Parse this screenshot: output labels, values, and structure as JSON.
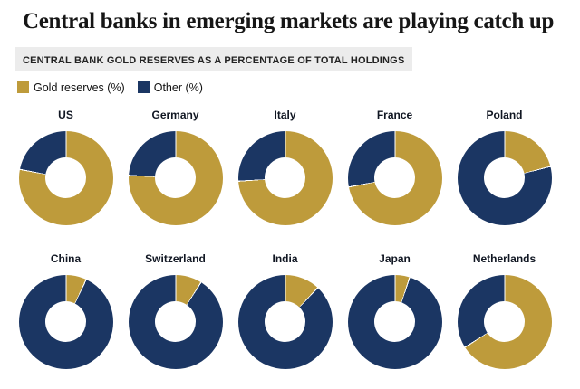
{
  "title": "Central banks in emerging markets are playing catch up",
  "subtitle": "CENTRAL BANK GOLD RESERVES AS A PERCENTAGE OF TOTAL HOLDINGS",
  "legend": {
    "gold_label": "Gold reserves (%)",
    "other_label": "Other (%)"
  },
  "colors": {
    "gold": "#BE9B3B",
    "navy": "#1B3663",
    "separator": "#FFFFFF"
  },
  "chart_data": {
    "type": "pie",
    "subtype": "donut-grid",
    "title": "Central bank gold reserves as a percentage of total holdings",
    "legend_entries": [
      "Gold reserves (%)",
      "Other (%)"
    ],
    "legend_position": "top-left",
    "columns": 5,
    "rows": 2,
    "series": [
      {
        "label": "US",
        "gold_pct": 78,
        "other_pct": 22
      },
      {
        "label": "Germany",
        "gold_pct": 76,
        "other_pct": 24
      },
      {
        "label": "Italy",
        "gold_pct": 74,
        "other_pct": 26
      },
      {
        "label": "France",
        "gold_pct": 72,
        "other_pct": 28
      },
      {
        "label": "Poland",
        "gold_pct": 21,
        "other_pct": 79
      },
      {
        "label": "China",
        "gold_pct": 7,
        "other_pct": 93
      },
      {
        "label": "Switzerland",
        "gold_pct": 9,
        "other_pct": 91
      },
      {
        "label": "India",
        "gold_pct": 12,
        "other_pct": 88
      },
      {
        "label": "Japan",
        "gold_pct": 5,
        "other_pct": 95
      },
      {
        "label": "Netherlands",
        "gold_pct": 66,
        "other_pct": 34
      }
    ]
  }
}
